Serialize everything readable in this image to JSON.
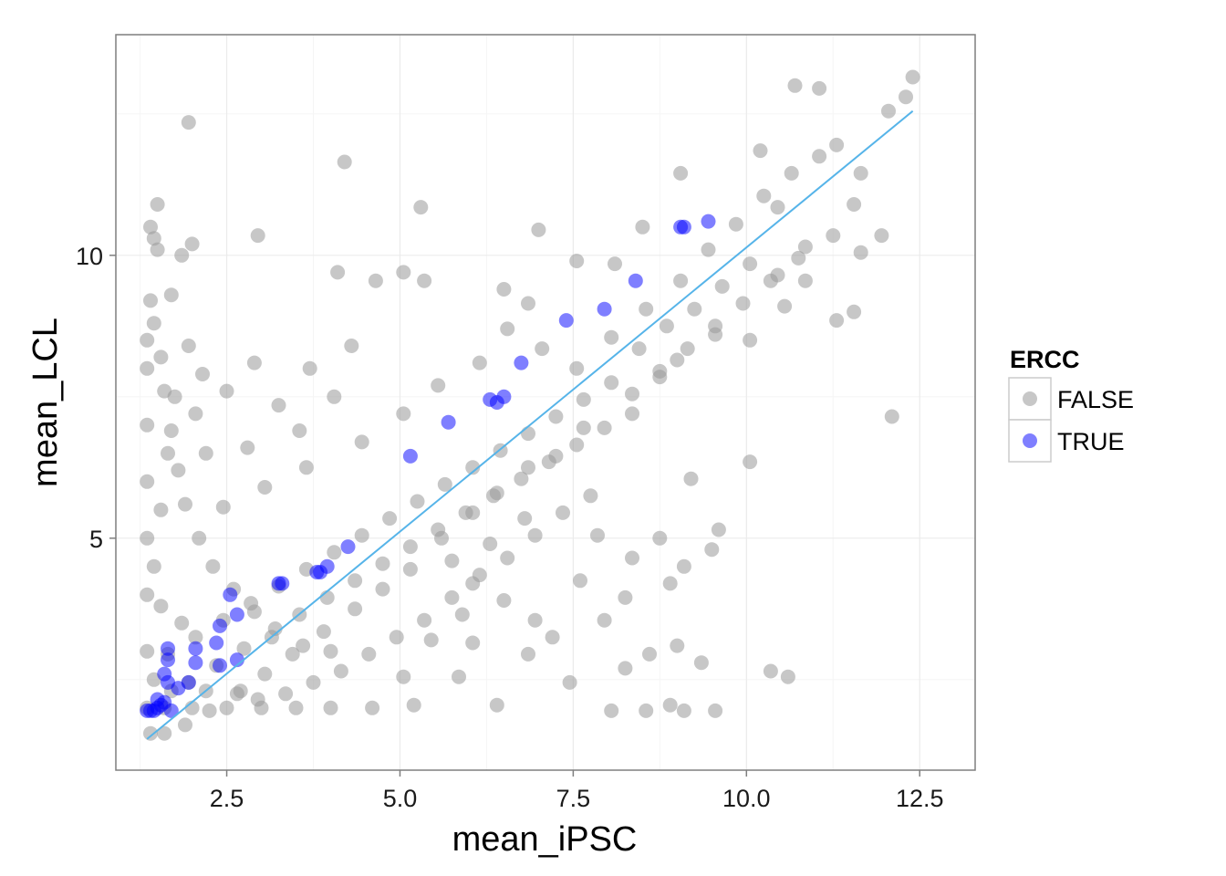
{
  "chart_data": {
    "type": "scatter",
    "xlabel": "mean_iPSC",
    "ylabel": "mean_LCL",
    "xlim": [
      0.9,
      13.3
    ],
    "ylim": [
      0.9,
      13.9
    ],
    "x_ticks": [
      2.5,
      5.0,
      7.5,
      10.0,
      12.5
    ],
    "x_tick_labels": [
      "2.5",
      "5.0",
      "7.5",
      "10.0",
      "12.5"
    ],
    "y_ticks": [
      5,
      10
    ],
    "y_tick_labels": [
      "5",
      "10"
    ],
    "grid": true,
    "legend": {
      "title": "ERCC",
      "position": "right",
      "entries": [
        {
          "label": "FALSE",
          "color": "#999999"
        },
        {
          "label": "TRUE",
          "color": "#0000ff"
        }
      ]
    },
    "reference_line": {
      "color": "#56b4e9",
      "points": [
        [
          1.35,
          1.45
        ],
        [
          12.4,
          12.55
        ]
      ]
    },
    "colors": {
      "false_points": "#999999",
      "true_points": "#0000ff",
      "grid": "#ebebeb",
      "panel_border": "#7f7f7f"
    },
    "series": [
      {
        "name": "FALSE",
        "color": "#999999",
        "points": [
          [
            1.95,
            12.35
          ],
          [
            4.2,
            11.65
          ],
          [
            5.3,
            10.85
          ],
          [
            2.95,
            10.35
          ],
          [
            1.4,
            10.5
          ],
          [
            1.45,
            10.3
          ],
          [
            1.5,
            10.9
          ],
          [
            1.5,
            10.1
          ],
          [
            1.85,
            10.0
          ],
          [
            2.0,
            10.2
          ],
          [
            1.4,
            9.2
          ],
          [
            1.7,
            9.3
          ],
          [
            4.1,
            9.7
          ],
          [
            4.65,
            9.55
          ],
          [
            5.05,
            9.7
          ],
          [
            5.35,
            9.55
          ],
          [
            6.5,
            9.4
          ],
          [
            6.85,
            9.15
          ],
          [
            7.55,
            9.9
          ],
          [
            8.1,
            9.85
          ],
          [
            8.5,
            10.5
          ],
          [
            7.0,
            10.45
          ],
          [
            9.05,
            11.45
          ],
          [
            10.2,
            11.85
          ],
          [
            10.7,
            13.0
          ],
          [
            11.05,
            12.95
          ],
          [
            12.4,
            13.15
          ],
          [
            12.3,
            12.8
          ],
          [
            12.05,
            12.55
          ],
          [
            11.3,
            11.95
          ],
          [
            11.65,
            11.45
          ],
          [
            11.55,
            10.9
          ],
          [
            11.95,
            10.35
          ],
          [
            12.1,
            7.15
          ],
          [
            11.55,
            9.0
          ],
          [
            11.3,
            8.85
          ],
          [
            10.85,
            9.55
          ],
          [
            10.55,
            9.1
          ],
          [
            10.05,
            8.5
          ],
          [
            9.55,
            8.6
          ],
          [
            9.0,
            8.15
          ],
          [
            8.75,
            7.85
          ],
          [
            8.35,
            7.2
          ],
          [
            7.65,
            6.95
          ],
          [
            7.25,
            6.45
          ],
          [
            6.85,
            6.25
          ],
          [
            6.4,
            5.8
          ],
          [
            6.05,
            5.45
          ],
          [
            5.6,
            5.0
          ],
          [
            5.15,
            4.45
          ],
          [
            4.75,
            4.1
          ],
          [
            4.35,
            3.75
          ],
          [
            3.9,
            3.35
          ],
          [
            3.45,
            2.95
          ],
          [
            3.05,
            2.6
          ],
          [
            2.65,
            2.25
          ],
          [
            2.25,
            1.95
          ],
          [
            1.9,
            1.7
          ],
          [
            1.6,
            1.55
          ],
          [
            1.4,
            1.55
          ],
          [
            9.2,
            6.05
          ],
          [
            9.6,
            5.15
          ],
          [
            10.05,
            6.35
          ],
          [
            10.35,
            2.65
          ],
          [
            10.6,
            2.55
          ],
          [
            9.35,
            2.8
          ],
          [
            9.0,
            3.1
          ],
          [
            8.6,
            2.95
          ],
          [
            8.25,
            2.7
          ],
          [
            8.05,
            1.95
          ],
          [
            8.55,
            1.95
          ],
          [
            9.1,
            1.95
          ],
          [
            9.55,
            1.95
          ],
          [
            8.9,
            2.05
          ],
          [
            7.2,
            3.25
          ],
          [
            6.95,
            3.55
          ],
          [
            6.5,
            3.9
          ],
          [
            6.05,
            4.2
          ],
          [
            5.75,
            4.6
          ],
          [
            7.85,
            5.05
          ],
          [
            8.35,
            4.65
          ],
          [
            8.75,
            5.0
          ],
          [
            9.5,
            4.8
          ],
          [
            9.1,
            4.5
          ],
          [
            8.9,
            4.2
          ],
          [
            7.6,
            4.25
          ],
          [
            6.8,
            5.35
          ],
          [
            6.3,
            4.9
          ],
          [
            5.9,
            3.65
          ],
          [
            5.45,
            3.2
          ],
          [
            5.2,
            2.05
          ],
          [
            4.6,
            2.0
          ],
          [
            4.0,
            2.0
          ],
          [
            3.5,
            2.0
          ],
          [
            3.0,
            2.0
          ],
          [
            2.5,
            2.0
          ],
          [
            2.0,
            2.0
          ],
          [
            1.6,
            2.0
          ],
          [
            1.35,
            2.0
          ],
          [
            6.4,
            2.05
          ],
          [
            1.35,
            3.0
          ],
          [
            1.35,
            4.0
          ],
          [
            1.35,
            5.0
          ],
          [
            1.35,
            6.0
          ],
          [
            1.35,
            7.0
          ],
          [
            1.35,
            8.0
          ],
          [
            1.35,
            8.5
          ],
          [
            1.45,
            8.8
          ],
          [
            1.55,
            8.2
          ],
          [
            1.6,
            7.6
          ],
          [
            1.7,
            6.9
          ],
          [
            1.8,
            6.2
          ],
          [
            1.9,
            5.6
          ],
          [
            2.1,
            5.0
          ],
          [
            2.3,
            4.5
          ],
          [
            2.6,
            4.1
          ],
          [
            2.9,
            3.7
          ],
          [
            3.2,
            3.4
          ],
          [
            3.6,
            3.1
          ],
          [
            4.0,
            3.0
          ],
          [
            1.95,
            8.4
          ],
          [
            2.15,
            7.9
          ],
          [
            2.5,
            7.6
          ],
          [
            2.9,
            8.1
          ],
          [
            3.25,
            7.35
          ],
          [
            3.7,
            8.0
          ],
          [
            4.3,
            8.4
          ],
          [
            4.05,
            7.5
          ],
          [
            3.55,
            6.9
          ],
          [
            2.8,
            6.6
          ],
          [
            2.2,
            6.5
          ],
          [
            2.05,
            7.2
          ],
          [
            2.45,
            5.55
          ],
          [
            3.05,
            5.9
          ],
          [
            3.65,
            6.25
          ],
          [
            4.45,
            6.7
          ],
          [
            5.05,
            7.2
          ],
          [
            5.55,
            7.7
          ],
          [
            6.15,
            8.1
          ],
          [
            6.55,
            8.7
          ],
          [
            7.05,
            8.35
          ],
          [
            7.55,
            8.0
          ],
          [
            8.05,
            8.55
          ],
          [
            8.55,
            9.05
          ],
          [
            9.05,
            9.55
          ],
          [
            9.45,
            10.1
          ],
          [
            9.85,
            10.55
          ],
          [
            10.25,
            11.05
          ],
          [
            10.65,
            11.45
          ],
          [
            11.05,
            11.75
          ],
          [
            10.45,
            10.85
          ],
          [
            10.85,
            10.15
          ],
          [
            11.25,
            10.35
          ],
          [
            11.65,
            10.05
          ],
          [
            10.45,
            9.65
          ],
          [
            10.05,
            9.85
          ],
          [
            9.65,
            9.45
          ],
          [
            9.25,
            9.05
          ],
          [
            8.85,
            8.75
          ],
          [
            8.45,
            8.35
          ],
          [
            8.05,
            7.75
          ],
          [
            7.65,
            7.45
          ],
          [
            7.25,
            7.15
          ],
          [
            6.85,
            6.85
          ],
          [
            6.45,
            6.55
          ],
          [
            6.05,
            6.25
          ],
          [
            5.65,
            5.95
          ],
          [
            5.25,
            5.65
          ],
          [
            4.85,
            5.35
          ],
          [
            4.45,
            5.05
          ],
          [
            4.05,
            4.75
          ],
          [
            3.65,
            4.45
          ],
          [
            3.25,
            4.15
          ],
          [
            2.85,
            3.85
          ],
          [
            2.45,
            3.55
          ],
          [
            2.05,
            3.25
          ],
          [
            1.65,
            2.95
          ],
          [
            1.95,
            2.45
          ],
          [
            2.35,
            2.75
          ],
          [
            2.75,
            3.05
          ],
          [
            3.15,
            3.25
          ],
          [
            3.55,
            3.65
          ],
          [
            3.95,
            3.95
          ],
          [
            4.35,
            4.25
          ],
          [
            4.75,
            4.55
          ],
          [
            5.15,
            4.85
          ],
          [
            5.55,
            5.15
          ],
          [
            5.95,
            5.45
          ],
          [
            6.35,
            5.75
          ],
          [
            6.75,
            6.05
          ],
          [
            7.15,
            6.35
          ],
          [
            7.55,
            6.65
          ],
          [
            7.95,
            6.95
          ],
          [
            8.35,
            7.55
          ],
          [
            8.75,
            7.95
          ],
          [
            9.15,
            8.35
          ],
          [
            9.55,
            8.75
          ],
          [
            9.95,
            9.15
          ],
          [
            10.35,
            9.55
          ],
          [
            10.75,
            9.95
          ],
          [
            7.75,
            5.75
          ],
          [
            7.35,
            5.45
          ],
          [
            6.95,
            5.05
          ],
          [
            6.55,
            4.65
          ],
          [
            6.15,
            4.35
          ],
          [
            5.75,
            3.95
          ],
          [
            5.35,
            3.55
          ],
          [
            4.95,
            3.25
          ],
          [
            4.55,
            2.95
          ],
          [
            4.15,
            2.65
          ],
          [
            3.75,
            2.45
          ],
          [
            3.35,
            2.25
          ],
          [
            2.95,
            2.15
          ],
          [
            5.85,
            2.55
          ],
          [
            6.85,
            2.95
          ],
          [
            7.45,
            2.45
          ],
          [
            7.95,
            3.55
          ],
          [
            8.25,
            3.95
          ],
          [
            6.05,
            3.15
          ],
          [
            5.05,
            2.55
          ],
          [
            1.45,
            4.5
          ],
          [
            1.55,
            5.5
          ],
          [
            1.65,
            6.5
          ],
          [
            1.75,
            7.5
          ],
          [
            1.85,
            3.5
          ],
          [
            1.55,
            3.8
          ],
          [
            1.45,
            2.5
          ],
          [
            1.7,
            2.3
          ],
          [
            2.2,
            2.3
          ],
          [
            2.7,
            2.3
          ]
        ]
      },
      {
        "name": "TRUE",
        "color": "#0000ff",
        "points": [
          [
            1.35,
            1.95
          ],
          [
            1.4,
            1.95
          ],
          [
            1.45,
            1.95
          ],
          [
            1.5,
            2.0
          ],
          [
            1.55,
            2.05
          ],
          [
            1.6,
            2.1
          ],
          [
            1.5,
            2.15
          ],
          [
            1.65,
            2.45
          ],
          [
            1.6,
            2.6
          ],
          [
            1.7,
            1.95
          ],
          [
            1.8,
            2.35
          ],
          [
            1.95,
            2.45
          ],
          [
            1.65,
            2.85
          ],
          [
            1.65,
            3.05
          ],
          [
            2.05,
            2.8
          ],
          [
            2.05,
            3.05
          ],
          [
            2.4,
            2.75
          ],
          [
            2.35,
            3.15
          ],
          [
            2.65,
            2.85
          ],
          [
            2.4,
            3.45
          ],
          [
            2.65,
            3.65
          ],
          [
            2.55,
            4.0
          ],
          [
            3.25,
            4.2
          ],
          [
            3.3,
            4.2
          ],
          [
            3.8,
            4.4
          ],
          [
            3.85,
            4.4
          ],
          [
            3.95,
            4.5
          ],
          [
            4.25,
            4.85
          ],
          [
            5.15,
            6.45
          ],
          [
            5.7,
            7.05
          ],
          [
            6.3,
            7.45
          ],
          [
            6.4,
            7.4
          ],
          [
            6.5,
            7.5
          ],
          [
            6.75,
            8.1
          ],
          [
            7.4,
            8.85
          ],
          [
            7.95,
            9.05
          ],
          [
            8.4,
            9.55
          ],
          [
            9.05,
            10.5
          ],
          [
            9.1,
            10.5
          ],
          [
            9.45,
            10.6
          ]
        ]
      }
    ]
  }
}
